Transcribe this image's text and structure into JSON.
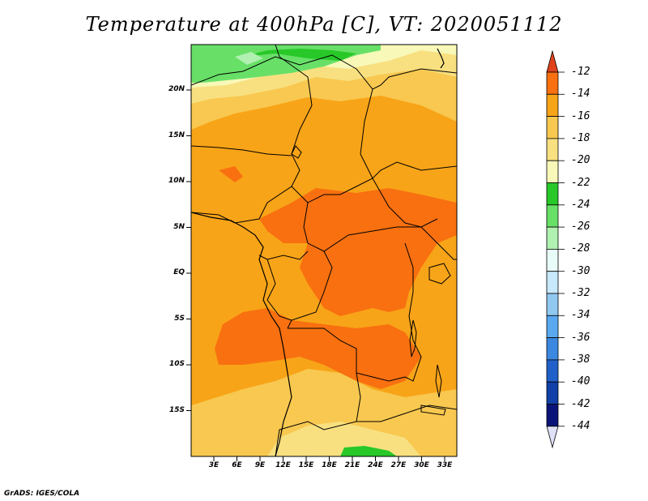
{
  "title": "Temperature at 400hPa [C], VT: 2020051112",
  "footer": "GrADS: IGES/COLA",
  "colors": {
    "lvl_12": "#e0421c",
    "lvl_14": "#f87010",
    "lvl_16": "#f8a418",
    "lvl_18": "#f8c850",
    "lvl_20": "#f8e080",
    "lvl_22": "#f8f8b8",
    "lvl_24": "#28c828",
    "lvl_26": "#68e068",
    "lvl_28": "#b0f0b0",
    "lvl_30": "#e8fcf8",
    "lvl_32": "#c8e8fc",
    "lvl_34": "#90c8f0",
    "lvl_36": "#5aa8f0",
    "lvl_38": "#3c88e0",
    "lvl_40": "#2060c8",
    "lvl_42": "#1040a8",
    "lvl_44": "#0a1478"
  },
  "latitude_labels": [
    "20N",
    "15N",
    "10N",
    "5N",
    "EQ",
    "5S",
    "10S",
    "15S"
  ],
  "longitude_labels": [
    "3E",
    "6E",
    "9E",
    "12E",
    "15E",
    "18E",
    "21E",
    "24E",
    "27E",
    "30E",
    "33E"
  ],
  "colorbar": {
    "labels": [
      "-12",
      "-14",
      "-16",
      "-18",
      "-20",
      "-22",
      "-24",
      "-26",
      "-28",
      "-30",
      "-32",
      "-34",
      "-36",
      "-38",
      "-40",
      "-42",
      "-44"
    ],
    "top_arrow_color": "#e0421c",
    "bottom_arrow_color": "#e0e0f8"
  }
}
